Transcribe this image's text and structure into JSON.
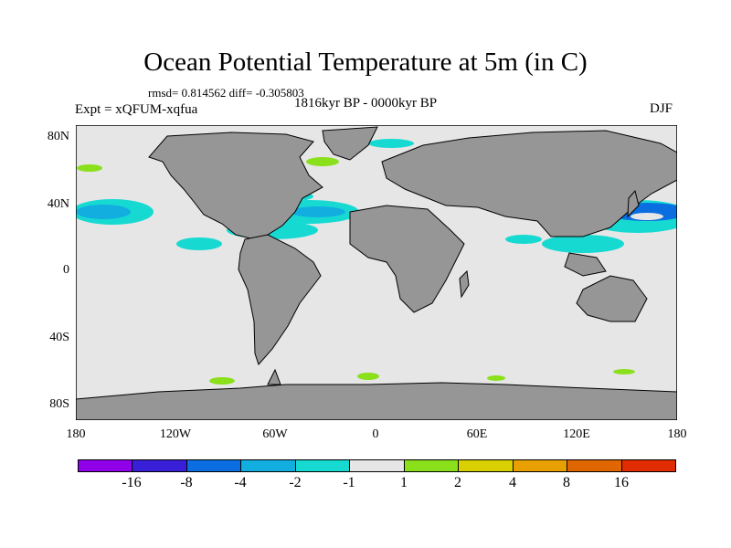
{
  "title": "Ocean Potential Temperature at 5m (in C)",
  "stats": "rmsd= 0.814562 diff= -0.305803",
  "experiment": "Expt = xQFUM-xqfua",
  "period": "1816kyr BP - 0000kyr BP",
  "season": "DJF",
  "map": {
    "y_ticks": [
      "80N",
      "40N",
      "0",
      "40S",
      "80S"
    ],
    "x_ticks": [
      "180",
      "120W",
      "60W",
      "0",
      "60E",
      "120E",
      "180"
    ],
    "colors": {
      "ocean": "#e6e6e6",
      "land": "#969696"
    }
  },
  "colorbar": {
    "colors": [
      "#9000e8",
      "#3a1fd8",
      "#0a6ee0",
      "#12aee0",
      "#16dad2",
      "#e6e6e6",
      "#8ae01a",
      "#d8d000",
      "#e8a000",
      "#e06600",
      "#e02c00"
    ],
    "labels": [
      "-16",
      "-8",
      "-4",
      "-2",
      "-1",
      "1",
      "2",
      "4",
      "8",
      "16"
    ]
  }
}
